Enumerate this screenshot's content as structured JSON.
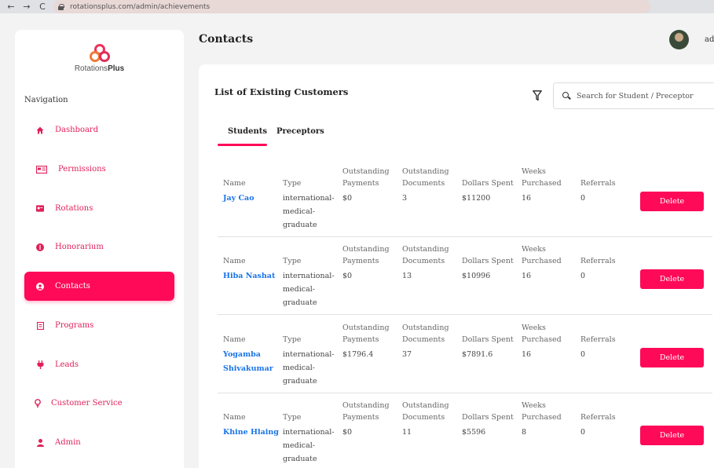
{
  "browser": {
    "url": "rotationsplus.com/admin/achievements",
    "back": "←",
    "forward": "→",
    "reload": "C"
  },
  "logo": {
    "part1": "Rotations",
    "part2": "Plus"
  },
  "nav": {
    "heading": "Navigation",
    "items": [
      {
        "label": "Dashboard",
        "icon": "home-icon"
      },
      {
        "label": "Permissions",
        "icon": "permissions-icon"
      },
      {
        "label": "Rotations",
        "icon": "rotations-icon"
      },
      {
        "label": "Honorarium",
        "icon": "honorarium-icon"
      },
      {
        "label": "Contacts",
        "icon": "contacts-icon",
        "active": true
      },
      {
        "label": "Programs",
        "icon": "programs-icon"
      },
      {
        "label": "Leads",
        "icon": "leads-icon"
      },
      {
        "label": "Customer Service",
        "icon": "customer-service-icon"
      },
      {
        "label": "Admin",
        "icon": "admin-icon"
      }
    ]
  },
  "header": {
    "title": "Contacts",
    "user": "adr"
  },
  "card": {
    "title": "List of Existing Customers",
    "search_placeholder": "Search for Student / Preceptor",
    "tabs": [
      {
        "label": "Students",
        "active": true
      },
      {
        "label": "Preceptors"
      }
    ]
  },
  "table": {
    "headers": {
      "name": "Name",
      "type": "Type",
      "outstanding_payments_1": "Outstanding",
      "outstanding_payments_2": "Payments",
      "outstanding_documents_1": "Outstanding",
      "outstanding_documents_2": "Documents",
      "dollars_spent": "Dollars Spent",
      "weeks_1": "Weeks",
      "weeks_2": "Purchased",
      "referrals": "Referrals"
    },
    "delete_label": "Delete",
    "rows": [
      {
        "name1": "Jay Cao",
        "name2": "",
        "type1": "international-",
        "type2": "medical-",
        "type3": "graduate",
        "payments": "$0",
        "documents": "3",
        "spent": "$11200",
        "weeks": "16",
        "referrals": "0"
      },
      {
        "name1": "Hiba Nashat",
        "name2": "",
        "type1": "international-",
        "type2": "medical-",
        "type3": "graduate",
        "payments": "$0",
        "documents": "13",
        "spent": "$10996",
        "weeks": "16",
        "referrals": "0"
      },
      {
        "name1": "Yogamba",
        "name2": "Shivakumar",
        "type1": "international-",
        "type2": "medical-",
        "type3": "graduate",
        "payments": "$1796.4",
        "documents": "37",
        "spent": "$7891.6",
        "weeks": "16",
        "referrals": "0"
      },
      {
        "name1": "Khine Hlaing",
        "name2": "",
        "type1": "international-",
        "type2": "medical-",
        "type3": "graduate",
        "payments": "$0",
        "documents": "11",
        "spent": "$5596",
        "weeks": "8",
        "referrals": "0"
      }
    ]
  }
}
